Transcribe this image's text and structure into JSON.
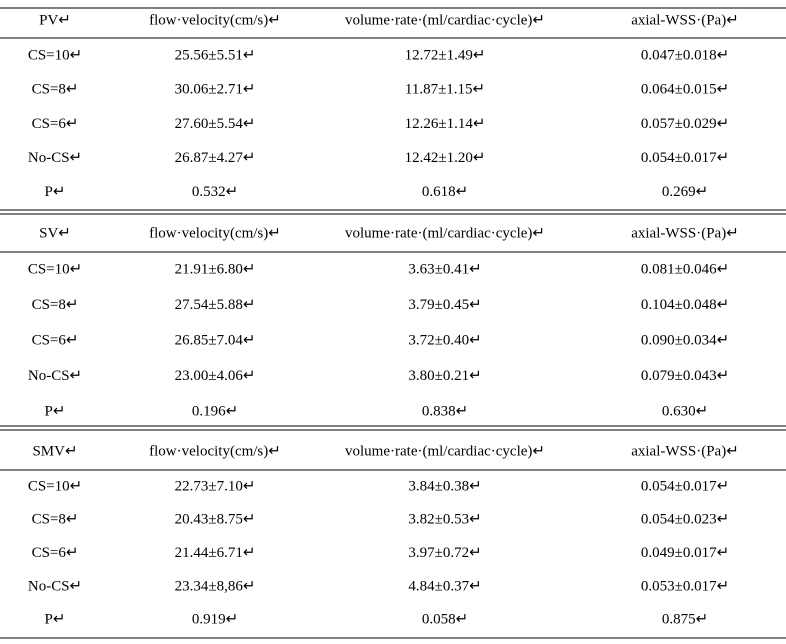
{
  "sections": [
    {
      "header": [
        "PV↵",
        "flow·velocity(cm/s)↵",
        "volume·rate·(ml/cardiac·cycle)↵",
        "axial-WSS·(Pa)↵"
      ],
      "rows": [
        [
          "CS=10↵",
          "25.56±5.51↵",
          "12.72±1.49↵",
          "0.047±0.018↵"
        ],
        [
          "CS=8↵",
          "30.06±2.71↵",
          "11.87±1.15↵",
          "0.064±0.015↵"
        ],
        [
          "CS=6↵",
          "27.60±5.54↵",
          "12.26±1.14↵",
          "0.057±0.029↵"
        ],
        [
          "No-CS↵",
          "26.87±4.27↵",
          "12.42±1.20↵",
          "0.054±0.017↵"
        ],
        [
          "P↵",
          "0.532↵",
          "0.618↵",
          "0.269↵"
        ]
      ]
    },
    {
      "header": [
        "SV↵",
        "flow·velocity(cm/s)↵",
        "volume·rate·(ml/cardiac·cycle)↵",
        "axial-WSS·(Pa)↵"
      ],
      "rows": [
        [
          "CS=10↵",
          "21.91±6.80↵",
          "3.63±0.41↵",
          "0.081±0.046↵"
        ],
        [
          "CS=8↵",
          "27.54±5.88↵",
          "3.79±0.45↵",
          "0.104±0.048↵"
        ],
        [
          "CS=6↵",
          "26.85±7.04↵",
          "3.72±0.40↵",
          "0.090±0.034↵"
        ],
        [
          "No-CS↵",
          "23.00±4.06↵",
          "3.80±0.21↵",
          "0.079±0.043↵"
        ],
        [
          "P↵",
          "0.196↵",
          "0.838↵",
          "0.630↵"
        ]
      ]
    },
    {
      "header": [
        "SMV↵",
        "flow·velocity(cm/s)↵",
        "volume·rate·(ml/cardiac·cycle)↵",
        "axial-WSS·(Pa)↵"
      ],
      "rows": [
        [
          "CS=10↵",
          "22.73±7.10↵",
          "3.84±0.38↵",
          "0.054±0.017↵"
        ],
        [
          "CS=8↵",
          "20.43±8.75↵",
          "3.82±0.53↵",
          "0.054±0.023↵"
        ],
        [
          "CS=6↵",
          "21.44±6.71↵",
          "3.97±0.72↵",
          "0.049±0.017↵"
        ],
        [
          "No-CS↵",
          "23.34±8,86↵",
          "4.84±0.37↵",
          "0.053±0.017↵"
        ],
        [
          "P↵",
          "0.919↵",
          "0.058↵",
          "0.875↵"
        ]
      ]
    }
  ]
}
